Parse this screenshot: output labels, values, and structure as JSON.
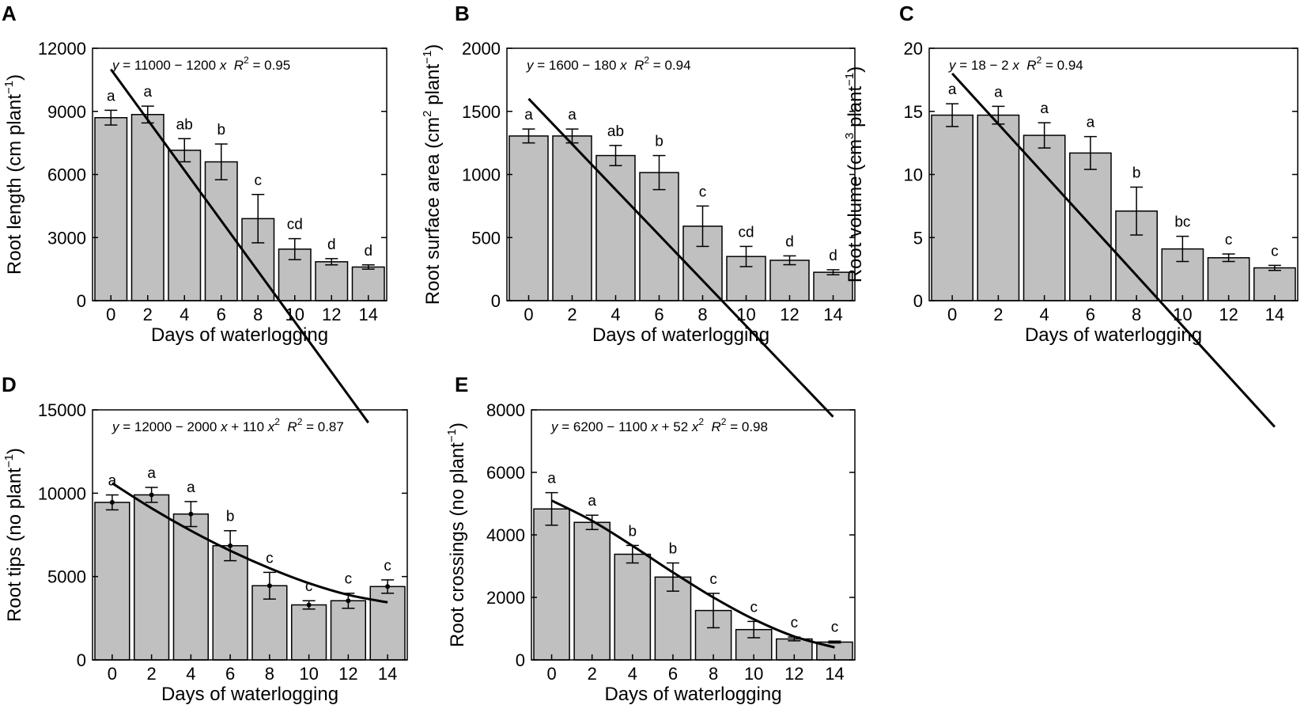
{
  "figure": {
    "background": "#ffffff"
  },
  "style": {
    "bar_fill": "#c0c0c0",
    "stroke": "#000000"
  },
  "chart_data": [
    {
      "id": "A",
      "panel_label": "A",
      "type": "bar",
      "categories": [
        "0",
        "2",
        "4",
        "6",
        "8",
        "10",
        "12",
        "14"
      ],
      "values": [
        8700,
        8850,
        7150,
        6600,
        3900,
        2450,
        1850,
        1600
      ],
      "errors": [
        350,
        400,
        550,
        850,
        1150,
        500,
        150,
        100
      ],
      "letters": [
        "a",
        "a",
        "ab",
        "b",
        "c",
        "cd",
        "d",
        "d"
      ],
      "yticks": [
        0,
        3000,
        6000,
        9000,
        12000
      ],
      "ylim": [
        0,
        12000
      ],
      "xlabel": "Days of waterlogging",
      "ylabel": {
        "main": "Root length (cm plant",
        "sup": "−1",
        "end": ")"
      },
      "equation": {
        "y": "y",
        "rhs": " = 11000 − 1200 ",
        "x": "x",
        "r": "R",
        "r2sup": "2",
        "r2val": " = 0.95"
      },
      "fit": {
        "type": "linear",
        "coef": [
          11000,
          -1200
        ],
        "xrange": [
          0,
          14
        ]
      },
      "markers": false
    },
    {
      "id": "B",
      "panel_label": "B",
      "type": "bar",
      "categories": [
        "0",
        "2",
        "4",
        "6",
        "8",
        "10",
        "12",
        "14"
      ],
      "values": [
        1305,
        1305,
        1150,
        1015,
        590,
        350,
        320,
        225
      ],
      "errors": [
        55,
        55,
        80,
        135,
        160,
        80,
        35,
        20
      ],
      "letters": [
        "a",
        "a",
        "ab",
        "b",
        "c",
        "cd",
        "d",
        "d"
      ],
      "yticks": [
        0,
        500,
        1000,
        1500,
        2000
      ],
      "ylim": [
        0,
        2000
      ],
      "xlabel": "Days of waterlogging",
      "ylabel": {
        "main": "Root surface area (cm",
        "sup": "2",
        "mid": " plant",
        "sup2": "−1",
        "end": ")"
      },
      "equation": {
        "y": "y",
        "rhs": " = 1600 − 180 ",
        "x": "x",
        "r": "R",
        "r2sup": "2",
        "r2val": " = 0.94"
      },
      "fit": {
        "type": "linear",
        "coef": [
          1600,
          -180
        ],
        "xrange": [
          0,
          14
        ]
      },
      "markers": false
    },
    {
      "id": "C",
      "panel_label": "C",
      "type": "bar",
      "categories": [
        "0",
        "2",
        "4",
        "6",
        "8",
        "10",
        "12",
        "14"
      ],
      "values": [
        14.7,
        14.7,
        13.1,
        11.7,
        7.1,
        4.1,
        3.4,
        2.6
      ],
      "errors": [
        0.9,
        0.7,
        1.0,
        1.3,
        1.9,
        1.0,
        0.3,
        0.2
      ],
      "letters": [
        "a",
        "a",
        "a",
        "a",
        "b",
        "bc",
        "c",
        "c"
      ],
      "yticks": [
        0,
        5,
        10,
        15,
        20
      ],
      "ylim": [
        0,
        20
      ],
      "xlabel": "Days of waterlogging",
      "ylabel": {
        "main": "Root volume (cm",
        "sup": "3",
        "mid": " plant",
        "sup2": "−1",
        "end": ")"
      },
      "equation": {
        "y": "y",
        "rhs": " = 18 − 2 ",
        "x": "x",
        "r": "R",
        "r2sup": "2",
        "r2val": " = 0.94"
      },
      "fit": {
        "type": "linear",
        "coef": [
          18,
          -2
        ],
        "xrange": [
          0,
          14
        ]
      },
      "markers": false
    },
    {
      "id": "D",
      "panel_label": "D",
      "type": "bar",
      "categories": [
        "0",
        "2",
        "4",
        "6",
        "8",
        "10",
        "12",
        "14"
      ],
      "values": [
        9450,
        9900,
        8750,
        6850,
        4450,
        3300,
        3550,
        4400
      ],
      "errors": [
        450,
        450,
        750,
        900,
        800,
        250,
        450,
        400
      ],
      "letters": [
        "a",
        "a",
        "a",
        "b",
        "c",
        "c",
        "c",
        "c"
      ],
      "yticks": [
        0,
        5000,
        10000,
        15000
      ],
      "ylim": [
        0,
        15000
      ],
      "xlabel": "Days of waterlogging",
      "ylabel": {
        "main": "Root tips (no plant",
        "sup": "−1",
        "end": ")"
      },
      "equation": {
        "y": "y",
        "rhs": " = 12000 − 2000 ",
        "x": "x",
        "mid": " + 110 ",
        "x2": "x",
        "x2sup": "2",
        "r": "R",
        "r2sup": "2",
        "r2val": " = 0.87"
      },
      "fit": {
        "type": "quadratic",
        "points": [
          [
            0,
            10600
          ],
          [
            2,
            9100
          ],
          [
            4,
            7750
          ],
          [
            6,
            6550
          ],
          [
            8,
            5500
          ],
          [
            10,
            4600
          ],
          [
            12,
            3900
          ],
          [
            14,
            3450
          ]
        ],
        "xrange": [
          0,
          14
        ]
      },
      "markers": true
    },
    {
      "id": "E",
      "panel_label": "E",
      "type": "bar",
      "categories": [
        "0",
        "2",
        "4",
        "6",
        "8",
        "10",
        "12",
        "14"
      ],
      "values": [
        4830,
        4400,
        3380,
        2650,
        1580,
        970,
        670,
        570
      ],
      "errors": [
        520,
        230,
        280,
        450,
        550,
        260,
        60,
        30
      ],
      "letters": [
        "a",
        "a",
        "b",
        "b",
        "c",
        "c",
        "c",
        "c"
      ],
      "yticks": [
        0,
        2000,
        4000,
        6000,
        8000
      ],
      "ylim": [
        0,
        8000
      ],
      "xlabel": "Days of waterlogging",
      "ylabel": {
        "main": "Root crossings (no plant",
        "sup": "−1",
        "end": ")"
      },
      "equation": {
        "y": "y",
        "rhs": " = 6200 − 1100 ",
        "x": "x",
        "mid": " + 52 ",
        "x2": "x",
        "x2sup": "2",
        "r": "R",
        "r2sup": "2",
        "r2val": " = 0.98"
      },
      "fit": {
        "type": "quadratic",
        "points": [
          [
            0,
            5100
          ],
          [
            2,
            4450
          ],
          [
            4,
            3650
          ],
          [
            6,
            2800
          ],
          [
            8,
            2000
          ],
          [
            10,
            1300
          ],
          [
            12,
            750
          ],
          [
            14,
            400
          ]
        ],
        "xrange": [
          0,
          14
        ]
      },
      "markers": false
    }
  ]
}
